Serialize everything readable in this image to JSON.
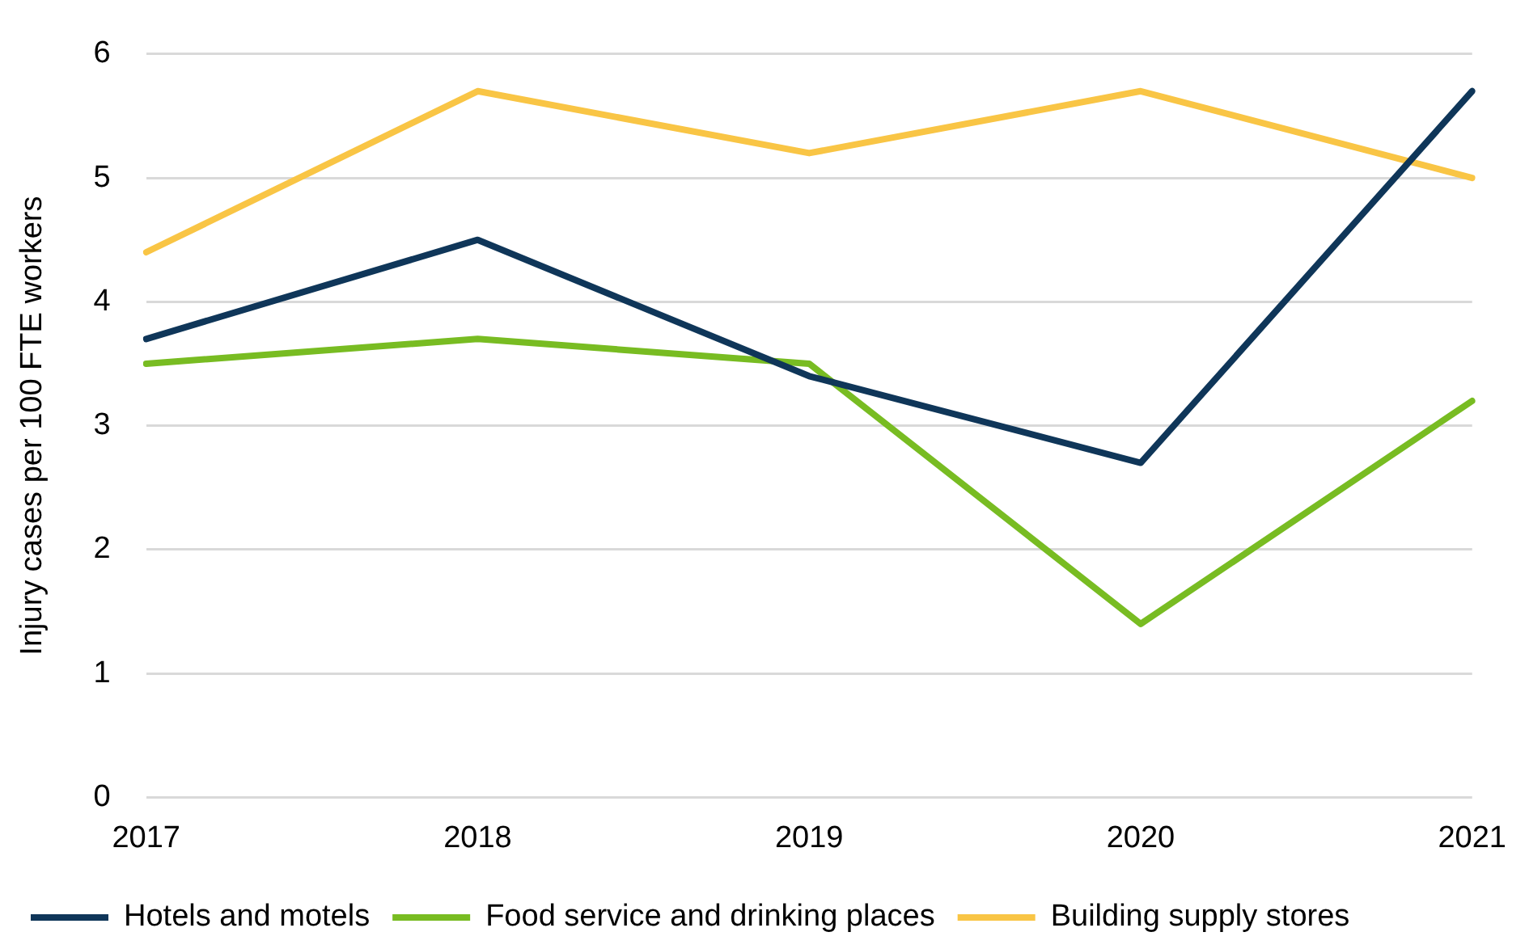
{
  "chart_data": {
    "type": "line",
    "ylabel": "Injury cases per 100 FTE workers",
    "categories": [
      "2017",
      "2018",
      "2019",
      "2020",
      "2021"
    ],
    "series": [
      {
        "name": "Hotels and motels",
        "color": "#0f3659",
        "values": [
          3.7,
          4.5,
          3.4,
          2.7,
          5.7
        ]
      },
      {
        "name": "Food service and drinking places",
        "color": "#78bc22",
        "values": [
          3.5,
          3.7,
          3.5,
          1.4,
          3.2
        ]
      },
      {
        "name": "Building supply stores",
        "color": "#f9c545",
        "values": [
          4.4,
          5.7,
          5.2,
          5.7,
          5.0
        ]
      }
    ],
    "ylim": [
      0,
      6
    ],
    "yticks": [
      0,
      1,
      2,
      3,
      4,
      5,
      6
    ],
    "grid": "y",
    "legend": "bottom",
    "marker": "none",
    "line_style": "solid"
  }
}
